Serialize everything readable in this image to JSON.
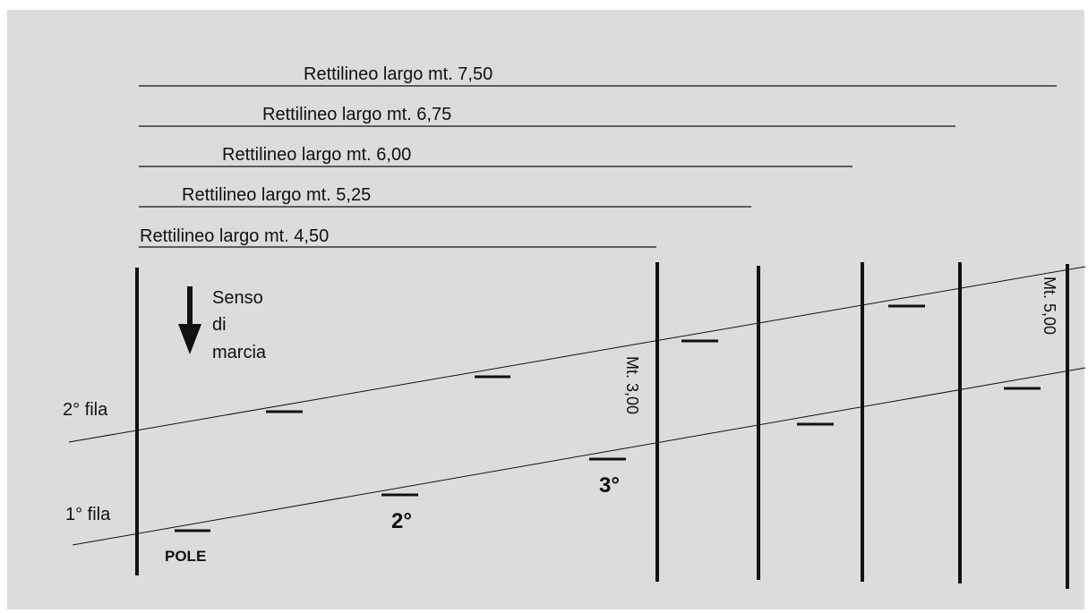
{
  "straights": [
    {
      "label": "Rettilineo largo mt. 7,50"
    },
    {
      "label": "Rettilineo largo mt. 6,75"
    },
    {
      "label": "Rettilineo largo mt. 6,00"
    },
    {
      "label": "Rettilineo largo mt. 5,25"
    },
    {
      "label": "Rettilineo largo mt. 4,50"
    }
  ],
  "direction": {
    "line1": "Senso",
    "line2": "di",
    "line3": "marcia"
  },
  "rows": {
    "second": "2° fila",
    "first": "1° fila"
  },
  "positions": {
    "pole": "POLE",
    "second": "2°",
    "third": "3°"
  },
  "measures": {
    "gap_rows": "Mt. 3,00",
    "gap_end": "Mt. 5,00"
  },
  "colors": {
    "background": "#dcdcdc",
    "ink": "#111111"
  }
}
